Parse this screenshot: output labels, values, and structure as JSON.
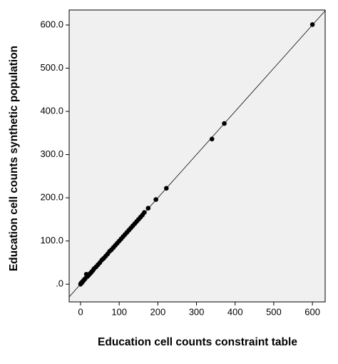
{
  "chart_data": {
    "type": "scatter",
    "xlabel": "Education cell counts constraint table",
    "ylabel": "Education cell counts synthetic population",
    "x": [
      0,
      1,
      2,
      4,
      5,
      8,
      10,
      12,
      15,
      18,
      22,
      25,
      28,
      32,
      35,
      40,
      45,
      50,
      55,
      60,
      65,
      70,
      75,
      80,
      85,
      90,
      95,
      100,
      105,
      110,
      115,
      120,
      125,
      130,
      135,
      140,
      145,
      150,
      155,
      160,
      165,
      175,
      195,
      222,
      340,
      372,
      600
    ],
    "values": [
      0,
      2,
      3,
      4,
      6,
      9,
      11,
      13,
      23,
      18,
      22,
      25,
      28,
      32,
      36,
      40,
      45,
      50,
      56,
      60,
      65,
      70,
      76,
      80,
      85,
      90,
      95,
      100,
      105,
      110,
      115,
      120,
      125,
      130,
      135,
      140,
      145,
      150,
      155,
      160,
      166,
      176,
      196,
      222,
      336,
      372,
      601
    ],
    "color": "#000000",
    "xlim": [
      -29.5,
      633
    ],
    "ylim": [
      -41,
      634.7
    ],
    "xticks": [
      0,
      100,
      200,
      300,
      400,
      500,
      600
    ],
    "yticks": [
      {
        "value": 0,
        "label": ".0"
      },
      {
        "value": 100,
        "label": "100.0"
      },
      {
        "value": 200,
        "label": "200.0"
      },
      {
        "value": 300,
        "label": "300.0"
      },
      {
        "value": 400,
        "label": "400.0"
      },
      {
        "value": 500,
        "label": "500.0"
      },
      {
        "value": 600,
        "label": "600.0"
      }
    ],
    "reference_line": true
  }
}
